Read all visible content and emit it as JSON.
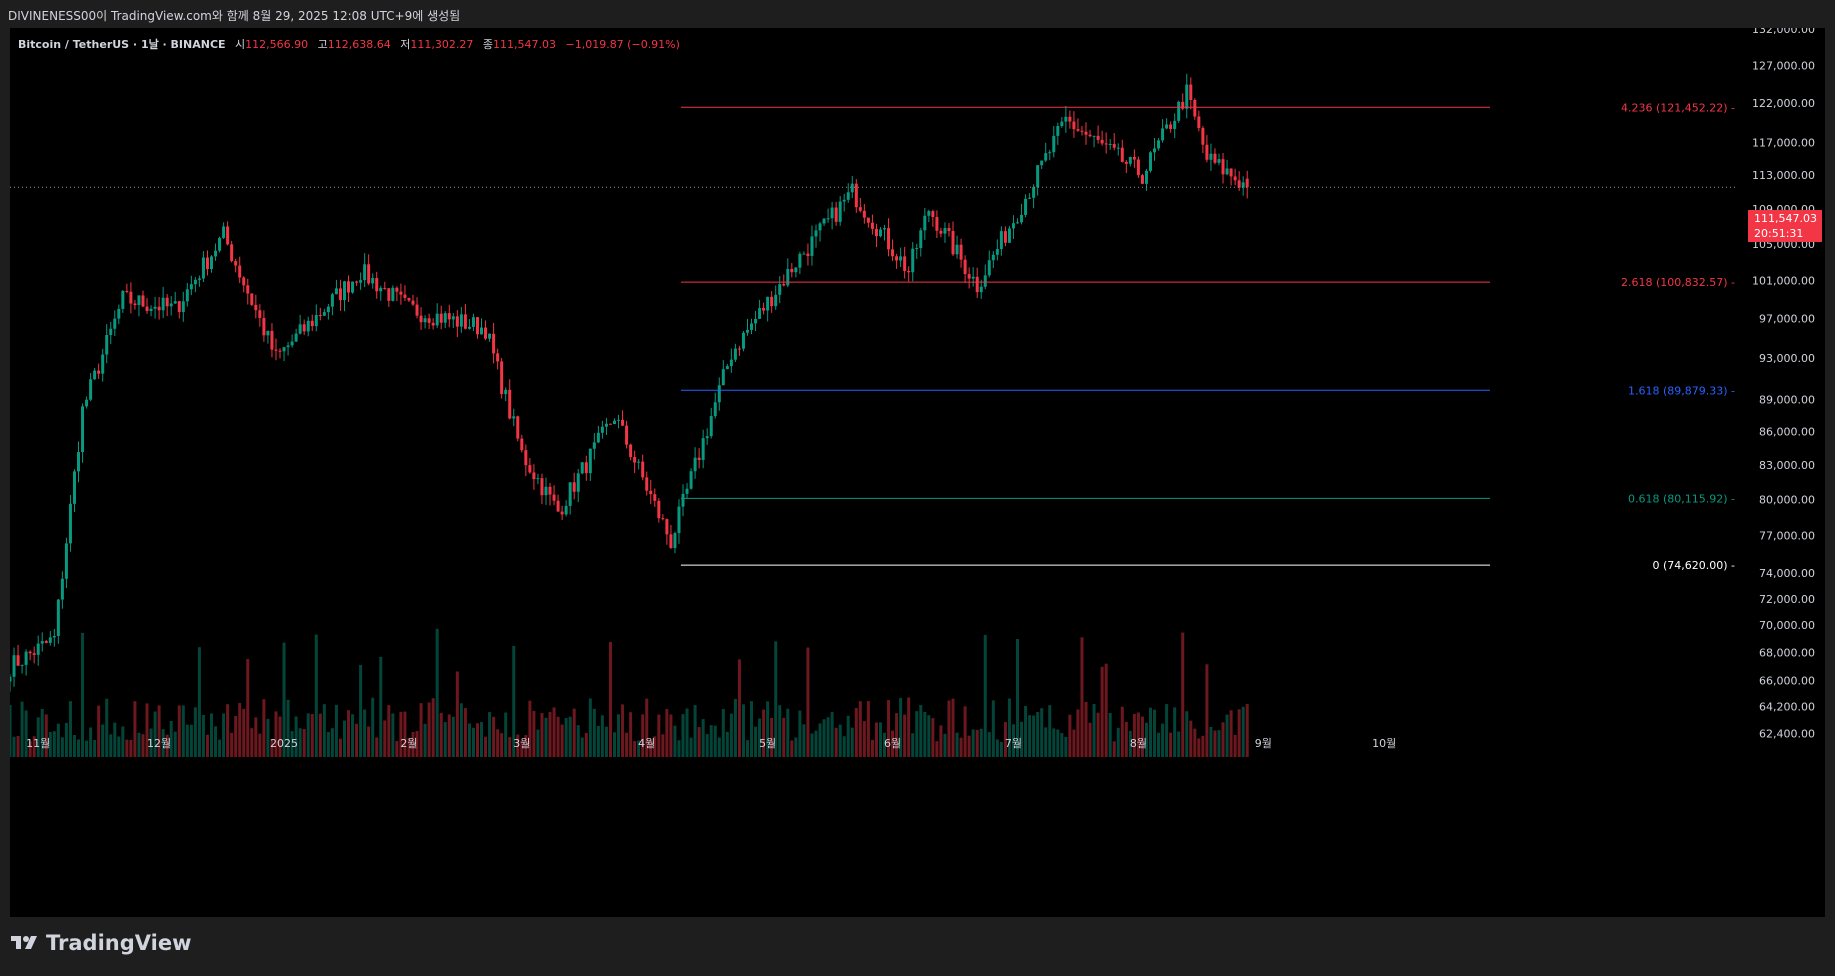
{
  "header": {
    "attribution": "DIVINENESS00이 TradingView.com와 함께 8월 29, 2025 12:08 UTC+9에 생성됨"
  },
  "legend": {
    "symbol": "Bitcoin / TetherUS · 1날 · BINANCE",
    "open_label": "시",
    "open_value": "112,566.90",
    "high_label": "고",
    "high_value": "112,638.64",
    "low_label": "저",
    "low_value": "111,302.27",
    "close_label": "종",
    "close_value": "111,547.03",
    "change": "−1,019.87 (−0.91%)"
  },
  "price_tag": {
    "price": "111,547.03",
    "countdown": "20:51:31"
  },
  "branding": {
    "logo_text": "TradingView"
  },
  "colors": {
    "background": "#000000",
    "chrome": "#1e1e1e",
    "up": "#089981",
    "down": "#f23645",
    "fib_4236": "#f23645",
    "fib_2618": "#f23645",
    "fib_1618": "#2962ff",
    "fib_0618": "#089981",
    "fib_0": "#ffffff"
  },
  "chart_data": {
    "type": "candlestick",
    "title": "Bitcoin / TetherUS · 1날 · BINANCE",
    "y_axis_labels": [
      "132,000.00",
      "127,000.00",
      "122,000.00",
      "117,000.00",
      "113,000.00",
      "109,000.00",
      "105,000.00",
      "101,000.00",
      "97,000.00",
      "93,000.00",
      "89,000.00",
      "86,000.00",
      "83,000.00",
      "80,000.00",
      "77,000.00",
      "74,000.00",
      "72,000.00",
      "70,000.00",
      "68,000.00",
      "66,000.00",
      "64,200.00",
      "62,400.00"
    ],
    "x_axis_labels": [
      "11월",
      "12월",
      "2025",
      "2월",
      "3월",
      "4월",
      "5월",
      "6월",
      "7월",
      "8월",
      "9월",
      "10월"
    ],
    "x_axis_scale": "time (daily)",
    "y_axis_scale": "log",
    "fib_extension": [
      {
        "label": "4.236 (121,452.22)",
        "value": 121452.22,
        "color": "#f23645"
      },
      {
        "label": "2.618 (100,832.57)",
        "value": 100832.57,
        "color": "#f23645"
      },
      {
        "label": "1.618 (89,879.33)",
        "value": 89879.33,
        "color": "#2962ff"
      },
      {
        "label": "0.618 (80,115.92)",
        "value": 80115.92,
        "color": "#089981"
      },
      {
        "label": "0 (74,620.00)",
        "value": 74620.0,
        "color": "#ffffff"
      }
    ],
    "fib_start_date": "2025-04-07",
    "series_anchors": [
      {
        "date": "2024-10-25",
        "close": 67000
      },
      {
        "date": "2024-11-05",
        "close": 69000
      },
      {
        "date": "2024-11-12",
        "close": 88000
      },
      {
        "date": "2024-11-22",
        "close": 99000
      },
      {
        "date": "2024-12-05",
        "close": 98000
      },
      {
        "date": "2024-12-17",
        "close": 106000
      },
      {
        "date": "2024-12-30",
        "close": 93000
      },
      {
        "date": "2025-01-20",
        "close": 102000
      },
      {
        "date": "2025-02-01",
        "close": 98000
      },
      {
        "date": "2025-02-20",
        "close": 96000
      },
      {
        "date": "2025-03-01",
        "close": 84000
      },
      {
        "date": "2025-03-10",
        "close": 79000
      },
      {
        "date": "2025-03-24",
        "close": 87500
      },
      {
        "date": "2025-04-07",
        "close": 76500
      },
      {
        "date": "2025-04-22",
        "close": 93500
      },
      {
        "date": "2025-05-08",
        "close": 103000
      },
      {
        "date": "2025-05-22",
        "close": 111000
      },
      {
        "date": "2025-06-05",
        "close": 102000
      },
      {
        "date": "2025-06-10",
        "close": 109000
      },
      {
        "date": "2025-06-22",
        "close": 100500
      },
      {
        "date": "2025-07-03",
        "close": 109500
      },
      {
        "date": "2025-07-14",
        "close": 119800
      },
      {
        "date": "2025-08-02",
        "close": 113000
      },
      {
        "date": "2025-08-13",
        "close": 123300
      },
      {
        "date": "2025-08-18",
        "close": 115000
      },
      {
        "date": "2025-08-24",
        "close": 113000
      },
      {
        "date": "2025-08-28",
        "close": 111547
      }
    ],
    "last": {
      "open": 112566.9,
      "high": 112638.64,
      "low": 111302.27,
      "close": 111547.03
    }
  }
}
